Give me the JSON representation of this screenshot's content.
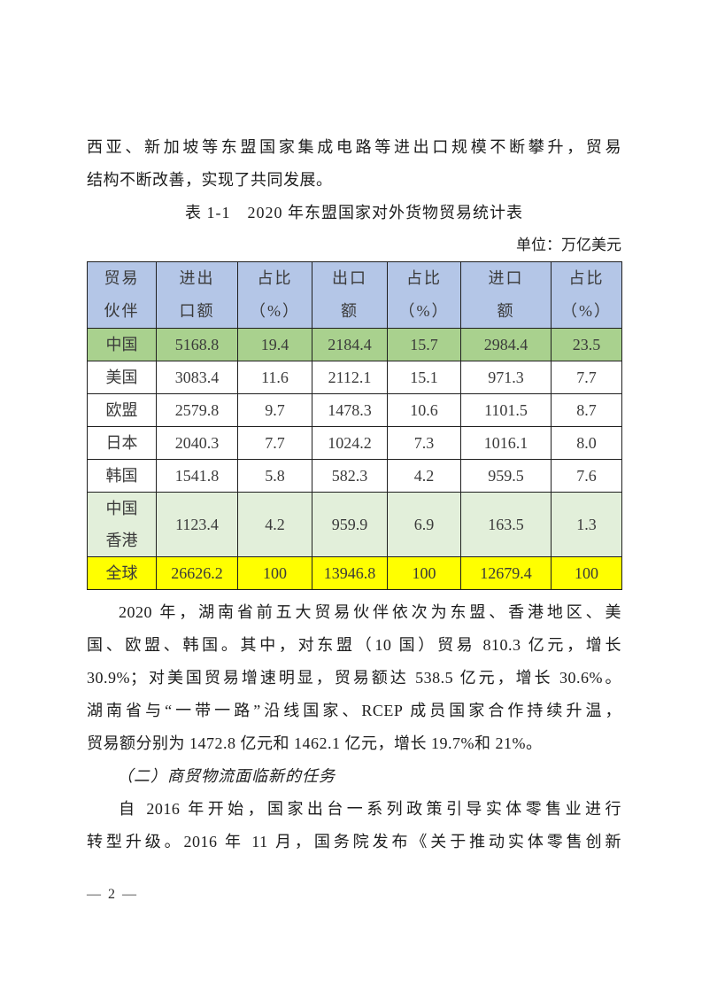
{
  "page": {
    "number_label": "— 2 —"
  },
  "intro": {
    "lines": [
      "西亚、新加坡等东盟国家集成电路等进出口规模不断攀升，贸易",
      "结构不断改善，实现了共同发展。"
    ]
  },
  "table": {
    "title": "表 1-1　2020 年东盟国家对外货物贸易统计表",
    "unit_label": "单位：万亿美元",
    "headers": [
      "贸易\n伙伴",
      "进出\n口额",
      "占比\n（%）",
      "出口\n额",
      "占比\n（%）",
      "进口\n额",
      "占比\n（%）"
    ],
    "rows": [
      {
        "label": "中国",
        "values": [
          "5168.8",
          "19.4",
          "2184.4",
          "15.7",
          "2984.4",
          "23.5"
        ],
        "bg": "#a9d18e",
        "tall": false
      },
      {
        "label": "美国",
        "values": [
          "3083.4",
          "11.6",
          "2112.1",
          "15.1",
          "971.3",
          "7.7"
        ],
        "bg": "",
        "tall": false
      },
      {
        "label": "欧盟",
        "values": [
          "2579.8",
          "9.7",
          "1478.3",
          "10.6",
          "1101.5",
          "8.7"
        ],
        "bg": "",
        "tall": false
      },
      {
        "label": "日本",
        "values": [
          "2040.3",
          "7.7",
          "1024.2",
          "7.3",
          "1016.1",
          "8.0"
        ],
        "bg": "",
        "tall": false
      },
      {
        "label": "韩国",
        "values": [
          "1541.8",
          "5.8",
          "582.3",
          "4.2",
          "959.5",
          "7.6"
        ],
        "bg": "",
        "tall": false
      },
      {
        "label": "中国\n香港",
        "values": [
          "1123.4",
          "4.2",
          "959.9",
          "6.9",
          "163.5",
          "1.3"
        ],
        "bg": "#e2efda",
        "tall": true
      },
      {
        "label": "全球",
        "values": [
          "26626.2",
          "100",
          "13946.8",
          "100",
          "12679.4",
          "100"
        ],
        "bg": "#ffff00",
        "tall": false
      }
    ],
    "colors": {
      "header_bg": "#b4c6e7",
      "china_row_bg": "#a9d18e",
      "hk_row_bg": "#e2efda",
      "global_row_bg": "#ffff00",
      "border": "#1f1f1f"
    }
  },
  "paragraph_trade": {
    "lines": [
      "2020 年，湖南省前五大贸易伙伴依次为东盟、香港地区、美",
      "国、欧盟、韩国。其中，对东盟（10 国）贸易 810.3 亿元，增长",
      "30.9%；对美国贸易增速明显，贸易额达 538.5 亿元，增长 30.6%。",
      "湖南省与“一带一路”沿线国家、RCEP 成员国家合作持续升温，",
      "贸易额分别为 1472.8 亿元和 1462.1 亿元，增长 19.7%和 21%。"
    ]
  },
  "section": {
    "heading": "（二）商贸物流面临新的任务"
  },
  "paragraph_retail": {
    "lines": [
      "自 2016 年开始，国家出台一系列政策引导实体零售业进行",
      "转型升级。2016 年 11 月，国务院发布《关于推动实体零售创新"
    ]
  }
}
